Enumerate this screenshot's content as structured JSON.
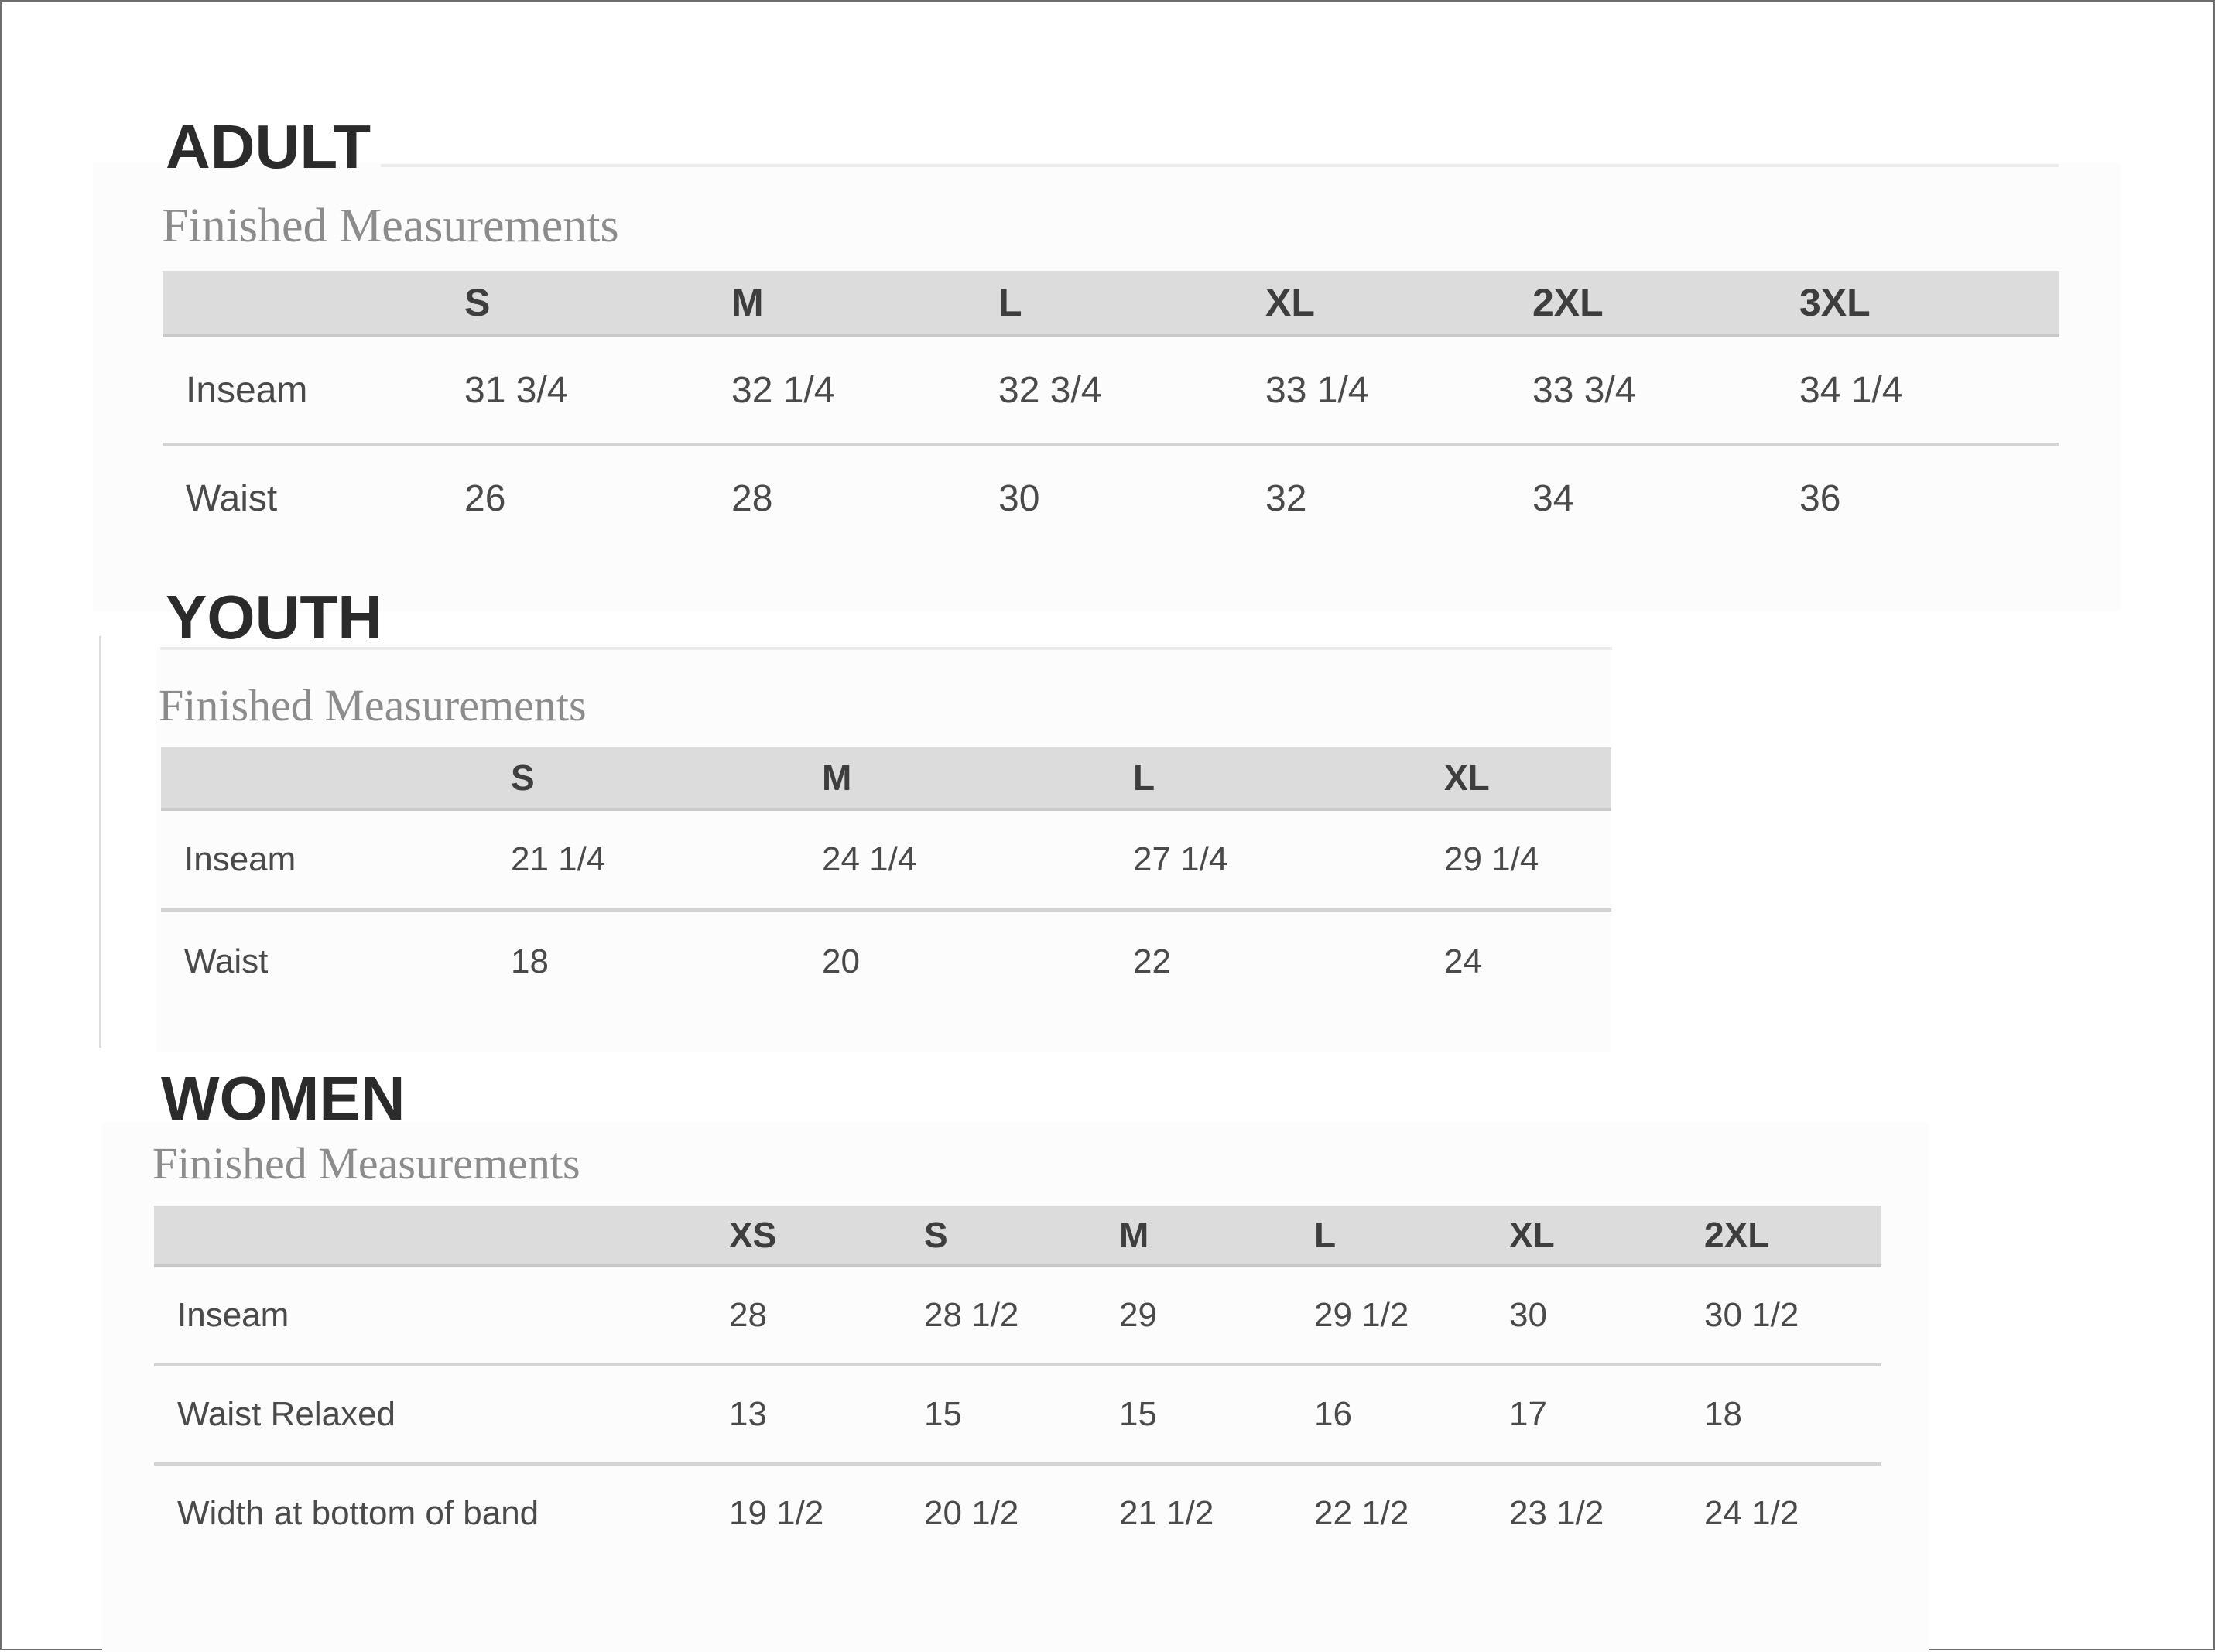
{
  "sections": [
    {
      "title": "ADULT",
      "subtitle": "Finished Measurements",
      "headers": [
        "",
        "S",
        "M",
        "L",
        "XL",
        "2XL",
        "3XL"
      ],
      "rows": [
        {
          "label": "Inseam",
          "values": [
            "31 3/4",
            "32 1/4",
            "32 3/4",
            "33 1/4",
            "33 3/4",
            "34 1/4"
          ]
        },
        {
          "label": "Waist",
          "values": [
            "26",
            "28",
            "30",
            "32",
            "34",
            "36"
          ]
        }
      ]
    },
    {
      "title": "YOUTH",
      "subtitle": "Finished Measurements",
      "headers": [
        "",
        "S",
        "M",
        "L",
        "XL"
      ],
      "rows": [
        {
          "label": "Inseam",
          "values": [
            "21 1/4",
            "24 1/4",
            "27 1/4",
            "29 1/4"
          ]
        },
        {
          "label": "Waist",
          "values": [
            "18",
            "20",
            "22",
            "24"
          ]
        }
      ]
    },
    {
      "title": "WOMEN",
      "subtitle": "Finished Measurements",
      "headers": [
        "",
        "XS",
        "S",
        "M",
        "L",
        "XL",
        "2XL"
      ],
      "rows": [
        {
          "label": "Inseam",
          "values": [
            "28",
            "28 1/2",
            "29",
            "29 1/2",
            "30",
            "30 1/2"
          ]
        },
        {
          "label": "Waist Relaxed",
          "values": [
            "13",
            "15",
            "15",
            "16",
            "17",
            "18"
          ]
        },
        {
          "label": "Width at bottom of band",
          "values": [
            "19 1/2",
            "20 1/2",
            "21 1/2",
            "22 1/2",
            "23 1/2",
            "24 1/2"
          ]
        }
      ]
    }
  ],
  "colors": {
    "header_bg": "#dcdcdc",
    "title_text": "#2b2b2b",
    "subtitle_text": "#8c8c8c",
    "cell_text": "#4a4a4a",
    "row_separator": "#d4d4d4",
    "frame_border": "#6e6e6e"
  }
}
